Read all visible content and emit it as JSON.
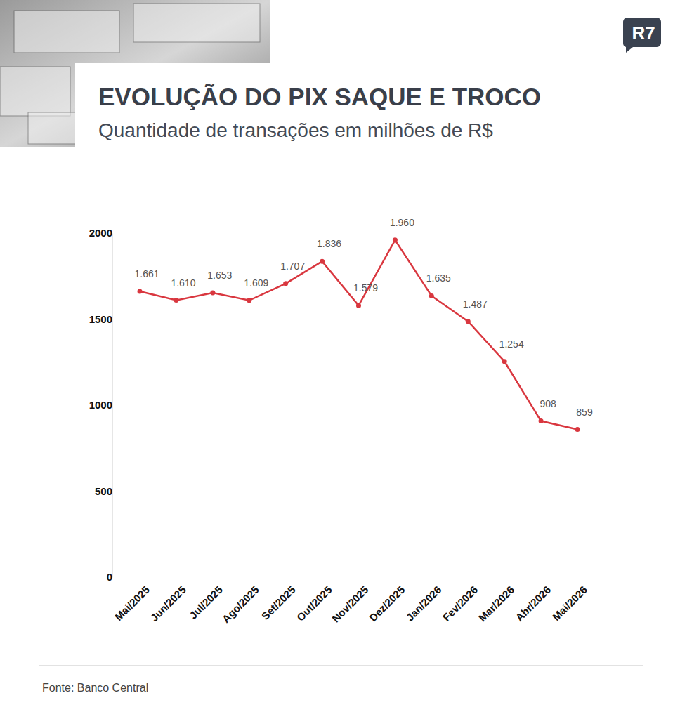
{
  "chart_data": {
    "type": "line",
    "title": "EVOLUÇÃO DO PIX SAQUE E TROCO",
    "subtitle": "Quantidade de transações em milhões de R$",
    "source": "Fonte: Banco Central",
    "logo": "R7",
    "categories": [
      "Mai/2025",
      "Jun/2025",
      "Jul/2025",
      "Ago/2025",
      "Set/2025",
      "Out/2025",
      "Nov/2025",
      "Dez/2025",
      "Jan/2026",
      "Fev/2026",
      "Mar/2026",
      "Abr/2026",
      "Mai/2026"
    ],
    "values": [
      1661,
      1610,
      1653,
      1609,
      1707,
      1836,
      1579,
      1960,
      1635,
      1487,
      1254,
      908,
      859
    ],
    "value_labels": [
      "1.661",
      "1.610",
      "1.653",
      "1.609",
      "1.707",
      "1.836",
      "1.579",
      "1.960",
      "1.635",
      "1.487",
      "1.254",
      "908",
      "859"
    ],
    "color": "#d9373f",
    "marker": "circle",
    "ylim": [
      0,
      2000
    ],
    "yticks": [
      0,
      500,
      1000,
      1500,
      2000
    ],
    "grid": false,
    "data_labels": true
  }
}
